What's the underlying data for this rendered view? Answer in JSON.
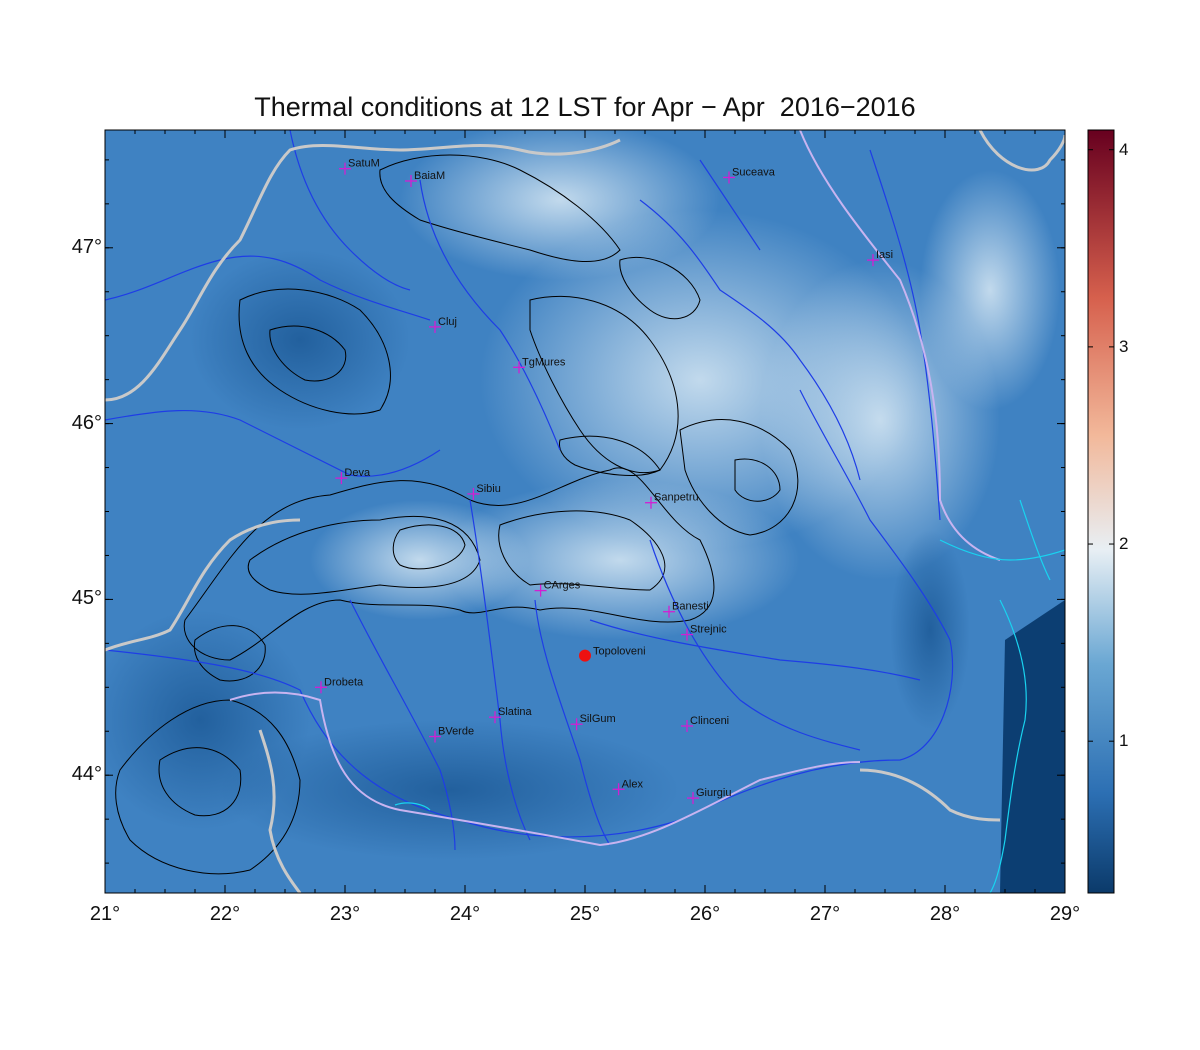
{
  "title": "Thermal conditions at 12 LST for Apr − Apr  2016−2016",
  "lon_ticks": [
    "21°",
    "22°",
    "23°",
    "24°",
    "25°",
    "26°",
    "27°",
    "28°",
    "29°"
  ],
  "lat_ticks": [
    "44°",
    "45°",
    "46°",
    "47°"
  ],
  "colorbar": {
    "ticks": [
      "1",
      "2",
      "3",
      "4"
    ],
    "colors": [
      "#0b3a6a",
      "#2c6fb3",
      "#6aa7d3",
      "#e8eff4",
      "#f2b89a",
      "#d6604d",
      "#67001f"
    ]
  },
  "map_colors": {
    "background": "#3f82c2",
    "rivers": "#1e3de6",
    "border": "#c9c9c9",
    "contours": "#000000",
    "coast": "#19d3f0",
    "station_marker": "#d21fd2",
    "highlight": "#ee1111"
  },
  "stations": [
    {
      "name": "SatuM",
      "lon": 23.0,
      "lat": 47.45
    },
    {
      "name": "BaiaM",
      "lon": 23.55,
      "lat": 47.38
    },
    {
      "name": "Suceava",
      "lon": 26.2,
      "lat": 47.4
    },
    {
      "name": "Iasi",
      "lon": 27.4,
      "lat": 46.93
    },
    {
      "name": "Cluj",
      "lon": 23.75,
      "lat": 46.55
    },
    {
      "name": "TgMures",
      "lon": 24.45,
      "lat": 46.32
    },
    {
      "name": "Deva",
      "lon": 22.97,
      "lat": 45.69
    },
    {
      "name": "Sibiu",
      "lon": 24.07,
      "lat": 45.6
    },
    {
      "name": "Sanpetru",
      "lon": 25.55,
      "lat": 45.55
    },
    {
      "name": "CArges",
      "lon": 24.63,
      "lat": 45.05
    },
    {
      "name": "Banesti",
      "lon": 25.7,
      "lat": 44.93
    },
    {
      "name": "Strejnic",
      "lon": 25.85,
      "lat": 44.8
    },
    {
      "name": "Drobeta",
      "lon": 22.8,
      "lat": 44.5
    },
    {
      "name": "Slatina",
      "lon": 24.25,
      "lat": 44.33
    },
    {
      "name": "SilGum",
      "lon": 24.93,
      "lat": 44.29
    },
    {
      "name": "Clinceni",
      "lon": 25.85,
      "lat": 44.28
    },
    {
      "name": "BVerde",
      "lon": 23.75,
      "lat": 44.22
    },
    {
      "name": "Alex",
      "lon": 25.28,
      "lat": 43.92
    },
    {
      "name": "Giurgiu",
      "lon": 25.9,
      "lat": 43.87
    }
  ],
  "highlight_station": {
    "name": "Topoloveni",
    "lon": 25.0,
    "lat": 44.68
  }
}
